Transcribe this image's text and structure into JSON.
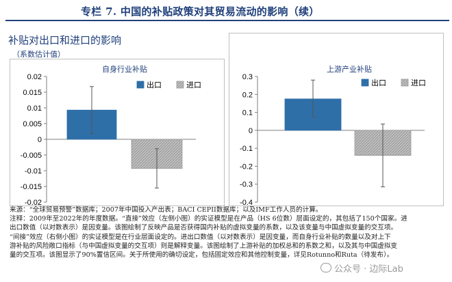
{
  "banner": {
    "title": "专栏 7. 中国的补贴政策对其贸易流动的影响（续）"
  },
  "figure": {
    "title": "补贴对出口和进口的影响",
    "subtitle": "（系数估计值）"
  },
  "chart_data": [
    {
      "type": "bar",
      "title": "自身行业补贴",
      "categories": [
        "出口",
        "进口"
      ],
      "series": [
        {
          "name": "出口",
          "value": 0.0093,
          "ci": [
            0.0018,
            0.0168
          ]
        },
        {
          "name": "进口",
          "value": -0.0093,
          "ci": [
            -0.0155,
            -0.003
          ]
        }
      ],
      "ylim": [
        -0.02,
        0.02
      ],
      "yticks": [
        "0.02",
        "0.015",
        "0.01",
        "0.005",
        "0",
        "-0.005",
        "-0.01",
        "-0.015",
        "-0.02"
      ],
      "legend": "top-right",
      "grid": false
    },
    {
      "type": "bar",
      "title": "上游产业补贴",
      "categories": [
        "出口",
        "进口"
      ],
      "series": [
        {
          "name": "出口",
          "value": 0.175,
          "ci": [
            0.075,
            0.28
          ]
        },
        {
          "name": "进口",
          "value": -0.14,
          "ci": [
            -0.315,
            0.035
          ]
        }
      ],
      "ylim": [
        -0.4,
        0.3
      ],
      "yticks": [
        "0.3",
        "0.2",
        "0.1",
        "0",
        "-0.1",
        "-0.2",
        "-0.3",
        "-0.4"
      ],
      "legend": "top-right",
      "grid": false
    }
  ],
  "colors": {
    "export": "#2f6fa8",
    "import": "#bfbfbf",
    "title": "#1f3f7a"
  },
  "notes": [
    "来源：“全球贸易预警”数据库；2007年中国投入产出表；BACI CEPII数据库；以及IMF工作人员的计算。",
    "注释：2009年至2022年的年度数据。“直接”效应（左侧小图）的实证模型是在产品（HS 6位数）层面设定的，其包括了150个国家。进",
    "出口数值（以对数表示）是因变量。该图绘制了反映产品是否获得国内补贴的虚拟变量的系数，以及该变量与中国虚拟变量的交互项。",
    "“间接”效应（右侧小图）的实证模型是在行业层面设定的。进出口数值（以对数表示）是因变量，而自身行业补贴的数量以及对上下",
    "游补贴的风险敞口指标（与中国虚拟变量的交互项）则是解释变量。该图绘制了上游补贴的加权总和的系数之和，以及其与中国虚拟变",
    "量的交互项。该图显示了90%置信区间。关于所使用的确切设定，包括固定效应和其他控制变量，详见Rotunno和Ruta（待发布）。"
  ],
  "watermark": "公众号 · 边际Lab"
}
